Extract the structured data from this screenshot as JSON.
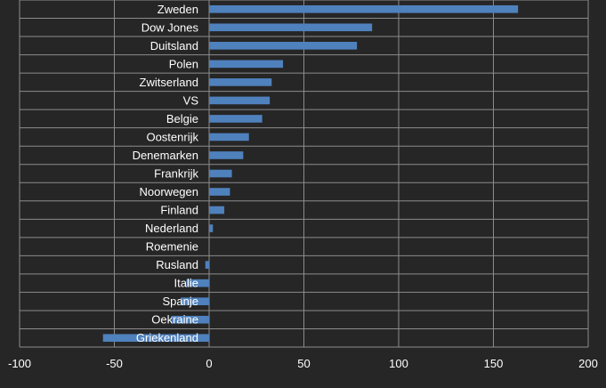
{
  "chart_data": {
    "type": "bar",
    "orientation": "horizontal",
    "title": "",
    "xlabel": "",
    "ylabel": "",
    "xlim": [
      -100,
      200
    ],
    "xticks": [
      -100,
      -50,
      0,
      50,
      100,
      150,
      200
    ],
    "grid": true,
    "categories": [
      "Zweden",
      "Dow Jones",
      "Duitsland",
      "Polen",
      "Zwitserland",
      "VS",
      "Belgie",
      "Oostenrijk",
      "Denemarken",
      "Frankrijk",
      "Noorwegen",
      "Finland",
      "Nederland",
      "Roemenie",
      "Rusland",
      "Italie",
      "Spanje",
      "Oekraine",
      "Griekenland"
    ],
    "values": [
      163,
      86,
      78,
      39,
      33,
      32,
      28,
      21,
      18,
      12,
      11,
      8,
      2,
      0,
      -2,
      -12,
      -15,
      -20,
      -56
    ],
    "colors": {
      "bar": "#4f81bd",
      "background": "#262626",
      "grid": "#8c8c8c",
      "text": "#ffffff"
    }
  }
}
